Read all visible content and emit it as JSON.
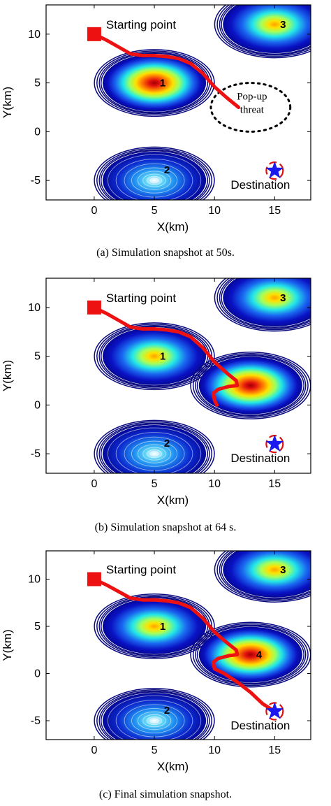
{
  "colors": {
    "path": "#ee1111",
    "start_marker": "#ee1111",
    "destination_star": "#1a1aee",
    "contour_ring": "#0a0a80",
    "threat_outer": "#0a1ca8",
    "threat_core_high": "#cc0000",
    "popup_threat_outline": "#000000"
  },
  "chart_data": [
    {
      "type": "contour",
      "caption": "(a) Simulation snapshot at 50s.",
      "xlabel": "X(km)",
      "ylabel": "Y(km)",
      "xlim": [
        -4,
        18
      ],
      "ylim": [
        -7,
        13
      ],
      "xticks": [
        "0",
        "5",
        "10",
        "15"
      ],
      "yticks": [
        "10",
        "5",
        "0",
        "-5"
      ],
      "start": {
        "label": "Starting point",
        "x": 0,
        "y": 10
      },
      "destination": {
        "label": "Destination",
        "x": 15,
        "y": -4
      },
      "threats": [
        {
          "label": "1",
          "x": 5,
          "y": 5,
          "level": "high"
        },
        {
          "label": "2",
          "x": 5,
          "y": -5,
          "level": "low"
        },
        {
          "label": "3",
          "x": 15,
          "y": 11,
          "level": "medium"
        }
      ],
      "popup_threat": {
        "label": "Pop-up threat",
        "x": 13,
        "y": 2.5,
        "rx": 3.3,
        "ry": 2.5
      },
      "path": [
        [
          0,
          10
        ],
        [
          1,
          9.4
        ],
        [
          2,
          8.7
        ],
        [
          3,
          8
        ],
        [
          4,
          7.8
        ],
        [
          5,
          7.8
        ],
        [
          6,
          7.7
        ],
        [
          7,
          7.5
        ],
        [
          8,
          7
        ],
        [
          9,
          6
        ],
        [
          10,
          4.6
        ],
        [
          11,
          3.5
        ],
        [
          12,
          2.5
        ]
      ]
    },
    {
      "type": "contour",
      "caption": "(b) Simulation snapshot at 64 s.",
      "xlabel": "X(km)",
      "ylabel": "Y(km)",
      "xlim": [
        -4,
        18
      ],
      "ylim": [
        -7,
        13
      ],
      "xticks": [
        "0",
        "5",
        "10",
        "15"
      ],
      "yticks": [
        "10",
        "5",
        "0",
        "-5"
      ],
      "start": {
        "label": "Starting point",
        "x": 0,
        "y": 10
      },
      "destination": {
        "label": "Destination",
        "x": 15,
        "y": -4
      },
      "threats": [
        {
          "label": "1",
          "x": 5,
          "y": 5,
          "level": "medium"
        },
        {
          "label": "2",
          "x": 5,
          "y": -5,
          "level": "low"
        },
        {
          "label": "3",
          "x": 15,
          "y": 11,
          "level": "medium"
        },
        {
          "label": "",
          "x": 13,
          "y": 2,
          "level": "high"
        }
      ],
      "path": [
        [
          0,
          10
        ],
        [
          1,
          9.4
        ],
        [
          2,
          8.7
        ],
        [
          3,
          8
        ],
        [
          4,
          7.8
        ],
        [
          5,
          7.8
        ],
        [
          6,
          7.7
        ],
        [
          7,
          7.5
        ],
        [
          8,
          7
        ],
        [
          9,
          5.9
        ],
        [
          10,
          4.4
        ],
        [
          11,
          3.3
        ],
        [
          11.8,
          2.5
        ],
        [
          11.9,
          2
        ],
        [
          11.2,
          1.9
        ],
        [
          10.3,
          1.6
        ],
        [
          9.9,
          1.2
        ],
        [
          10,
          0.5
        ],
        [
          10.2,
          0
        ]
      ]
    },
    {
      "type": "contour",
      "caption": "(c) Final simulation snapshot.",
      "xlabel": "X(km)",
      "ylabel": "Y(km)",
      "xlim": [
        -4,
        18
      ],
      "ylim": [
        -7,
        13
      ],
      "xticks": [
        "0",
        "5",
        "10",
        "15"
      ],
      "yticks": [
        "10",
        "5",
        "0",
        "-5"
      ],
      "start": {
        "label": "Starting point",
        "x": 0,
        "y": 10
      },
      "destination": {
        "label": "Destination",
        "x": 15,
        "y": -4
      },
      "threats": [
        {
          "label": "1",
          "x": 5,
          "y": 5,
          "level": "medium"
        },
        {
          "label": "2",
          "x": 5,
          "y": -5,
          "level": "low"
        },
        {
          "label": "3",
          "x": 15,
          "y": 11,
          "level": "medium"
        },
        {
          "label": "4",
          "x": 13,
          "y": 2,
          "level": "high"
        }
      ],
      "path": [
        [
          0,
          10
        ],
        [
          1,
          9.4
        ],
        [
          2,
          8.7
        ],
        [
          3,
          8
        ],
        [
          4,
          7.8
        ],
        [
          5,
          7.8
        ],
        [
          6,
          7.7
        ],
        [
          7,
          7.5
        ],
        [
          8,
          7
        ],
        [
          9,
          5.9
        ],
        [
          10,
          4.4
        ],
        [
          11,
          3.3
        ],
        [
          11.8,
          2.5
        ],
        [
          11.9,
          2
        ],
        [
          11.2,
          1.9
        ],
        [
          10.3,
          1.6
        ],
        [
          9.9,
          1.2
        ],
        [
          10,
          0.5
        ],
        [
          10.8,
          0
        ],
        [
          12,
          -1
        ],
        [
          13,
          -2
        ],
        [
          14,
          -3.2
        ],
        [
          15,
          -4
        ]
      ]
    }
  ]
}
